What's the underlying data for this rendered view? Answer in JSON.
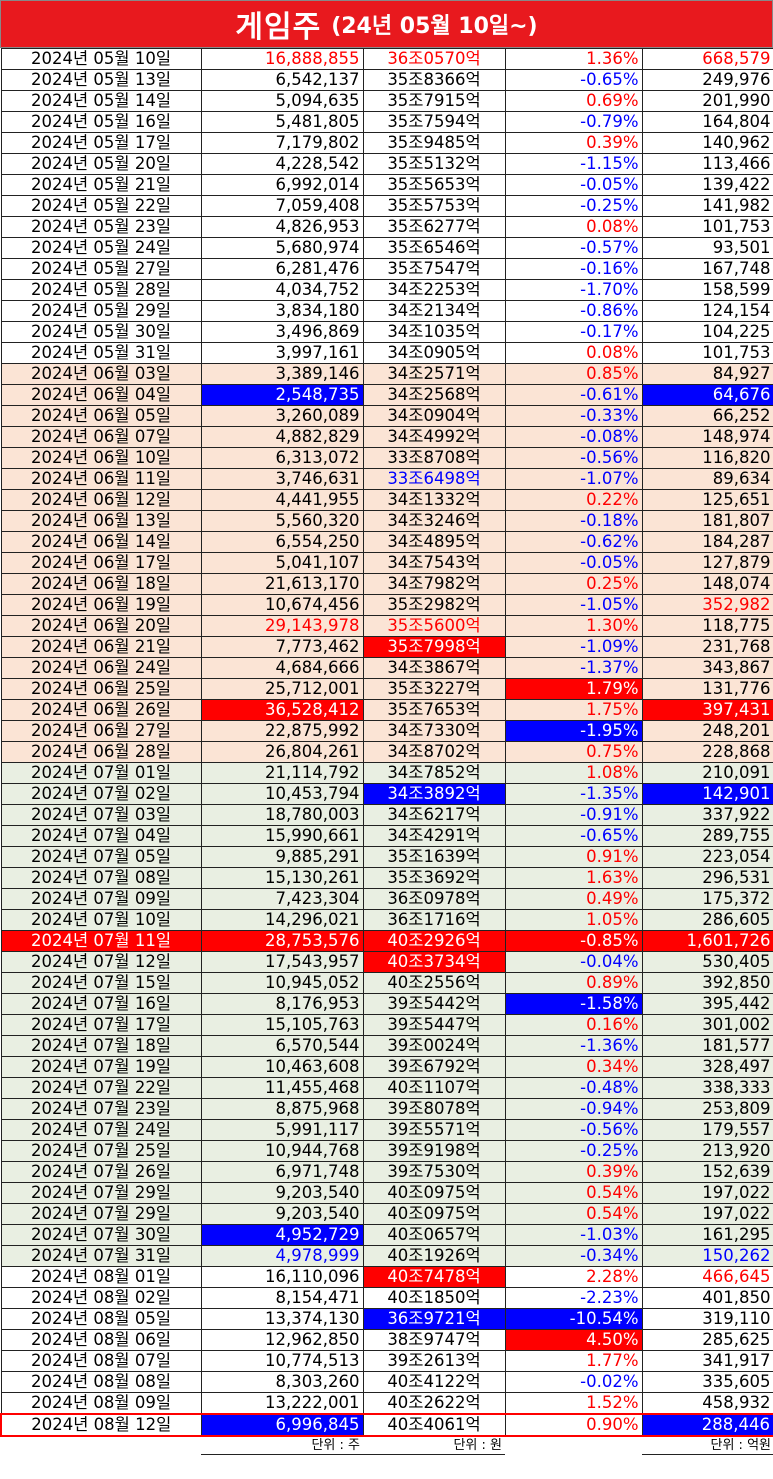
{
  "title": {
    "main": "게임주",
    "sub": "(24년 05월 10일~)"
  },
  "units": {
    "volume": "단위 : 주",
    "cap": "단위 : 원",
    "amount": "단위 : 억원"
  },
  "colors": {
    "title_bg": "#e8191e",
    "highlight_red": "#ff0000",
    "highlight_blue": "#0000ff",
    "may_bg": "#ffffff",
    "june_bg": "#fbe4d5",
    "july_bg": "#e9efe2",
    "aug_bg": "#ffffff"
  },
  "rows": [
    {
      "g": "may",
      "date": "2024년 05월 10일",
      "vol": "16,888,855",
      "cap": "36조0570억",
      "chg": "1.36%",
      "amt": "668,579",
      "vs": "r",
      "cs": "r",
      "gs": "r",
      "as": "r"
    },
    {
      "g": "may",
      "date": "2024년 05월 13일",
      "vol": "6,542,137",
      "cap": "35조8366억",
      "chg": "-0.65%",
      "amt": "249,976",
      "gs": "b"
    },
    {
      "g": "may",
      "date": "2024년 05월 14일",
      "vol": "5,094,635",
      "cap": "35조7915억",
      "chg": "0.69%",
      "amt": "201,990",
      "gs": "r"
    },
    {
      "g": "may",
      "date": "2024년 05월 16일",
      "vol": "5,481,805",
      "cap": "35조7594억",
      "chg": "-0.79%",
      "amt": "164,804",
      "gs": "b"
    },
    {
      "g": "may",
      "date": "2024년 05월 17일",
      "vol": "7,179,802",
      "cap": "35조9485억",
      "chg": "0.39%",
      "amt": "140,962",
      "gs": "r"
    },
    {
      "g": "may",
      "date": "2024년 05월 20일",
      "vol": "4,228,542",
      "cap": "35조5132억",
      "chg": "-1.15%",
      "amt": "113,466",
      "gs": "b"
    },
    {
      "g": "may",
      "date": "2024년 05월 21일",
      "vol": "6,992,014",
      "cap": "35조5653억",
      "chg": "-0.05%",
      "amt": "139,422",
      "gs": "b"
    },
    {
      "g": "may",
      "date": "2024년 05월 22일",
      "vol": "7,059,408",
      "cap": "35조5753억",
      "chg": "-0.25%",
      "amt": "141,982",
      "gs": "b"
    },
    {
      "g": "may",
      "date": "2024년 05월 23일",
      "vol": "4,826,953",
      "cap": "35조6277억",
      "chg": "0.08%",
      "amt": "101,753",
      "gs": "r"
    },
    {
      "g": "may",
      "date": "2024년 05월 24일",
      "vol": "5,680,974",
      "cap": "35조6546억",
      "chg": "-0.57%",
      "amt": "93,501",
      "gs": "b"
    },
    {
      "g": "may",
      "date": "2024년 05월 27일",
      "vol": "6,281,476",
      "cap": "35조7547억",
      "chg": "-0.16%",
      "amt": "167,748",
      "gs": "b"
    },
    {
      "g": "may",
      "date": "2024년 05월 28일",
      "vol": "4,034,752",
      "cap": "34조2253억",
      "chg": "-1.70%",
      "amt": "158,599",
      "gs": "b"
    },
    {
      "g": "may",
      "date": "2024년 05월 29일",
      "vol": "3,834,180",
      "cap": "34조2134억",
      "chg": "-0.86%",
      "amt": "124,154",
      "gs": "b"
    },
    {
      "g": "may",
      "date": "2024년 05월 30일",
      "vol": "3,496,869",
      "cap": "34조1035억",
      "chg": "-0.17%",
      "amt": "104,225",
      "gs": "b"
    },
    {
      "g": "may",
      "date": "2024년 05월 31일",
      "vol": "3,997,161",
      "cap": "34조0905억",
      "chg": "0.08%",
      "amt": "101,753",
      "gs": "r"
    },
    {
      "g": "jun",
      "date": "2024년 06월 03일",
      "vol": "3,389,146",
      "cap": "34조2571억",
      "chg": "0.85%",
      "amt": "84,927",
      "gs": "r"
    },
    {
      "g": "jun",
      "date": "2024년 06월 04일",
      "vol": "2,548,735",
      "cap": "34조2568억",
      "chg": "-0.61%",
      "amt": "64,676",
      "vs": "B",
      "gs": "b",
      "as": "B"
    },
    {
      "g": "jun",
      "date": "2024년 06월 05일",
      "vol": "3,260,089",
      "cap": "34조0904억",
      "chg": "-0.33%",
      "amt": "66,252",
      "gs": "b"
    },
    {
      "g": "jun",
      "date": "2024년 06월 07일",
      "vol": "4,882,829",
      "cap": "34조4992억",
      "chg": "-0.08%",
      "amt": "148,974",
      "gs": "b"
    },
    {
      "g": "jun",
      "date": "2024년 06월 10일",
      "vol": "6,313,072",
      "cap": "33조8708억",
      "chg": "-0.56%",
      "amt": "116,820",
      "gs": "b"
    },
    {
      "g": "jun",
      "date": "2024년 06월 11일",
      "vol": "3,746,631",
      "cap": "33조6498억",
      "chg": "-1.07%",
      "amt": "89,634",
      "cs": "b",
      "gs": "b"
    },
    {
      "g": "jun",
      "date": "2024년 06월 12일",
      "vol": "4,441,955",
      "cap": "34조1332억",
      "chg": "0.22%",
      "amt": "125,651",
      "gs": "r"
    },
    {
      "g": "jun",
      "date": "2024년 06월 13일",
      "vol": "5,560,320",
      "cap": "34조3246억",
      "chg": "-0.18%",
      "amt": "181,807",
      "gs": "b"
    },
    {
      "g": "jun",
      "date": "2024년 06월 14일",
      "vol": "6,554,250",
      "cap": "34조4895억",
      "chg": "-0.62%",
      "amt": "184,287",
      "gs": "b"
    },
    {
      "g": "jun",
      "date": "2024년 06월 17일",
      "vol": "5,041,107",
      "cap": "34조7543억",
      "chg": "-0.05%",
      "amt": "127,879",
      "gs": "b"
    },
    {
      "g": "jun",
      "date": "2024년 06월 18일",
      "vol": "21,613,170",
      "cap": "34조7982억",
      "chg": "0.25%",
      "amt": "148,074",
      "gs": "r"
    },
    {
      "g": "jun",
      "date": "2024년 06월 19일",
      "vol": "10,674,456",
      "cap": "35조2982억",
      "chg": "-1.05%",
      "amt": "352,982",
      "gs": "b",
      "as": "r"
    },
    {
      "g": "jun",
      "date": "2024년 06월 20일",
      "vol": "29,143,978",
      "cap": "35조5600억",
      "chg": "1.30%",
      "amt": "118,775",
      "vs": "r",
      "cs": "r",
      "gs": "r"
    },
    {
      "g": "jun",
      "date": "2024년 06월 21일",
      "vol": "7,773,462",
      "cap": "35조7998억",
      "chg": "-1.09%",
      "amt": "231,768",
      "cs": "R",
      "gs": "b"
    },
    {
      "g": "jun",
      "date": "2024년 06월 24일",
      "vol": "4,684,666",
      "cap": "34조3867억",
      "chg": "-1.37%",
      "amt": "343,867",
      "gs": "b"
    },
    {
      "g": "jun",
      "date": "2024년 06월 25일",
      "vol": "25,712,001",
      "cap": "35조3227억",
      "chg": "1.79%",
      "amt": "131,776",
      "gs": "R"
    },
    {
      "g": "jun",
      "date": "2024년 06월 26일",
      "vol": "36,528,412",
      "cap": "35조7653억",
      "chg": "1.75%",
      "amt": "397,431",
      "vs": "R",
      "gs": "r",
      "as": "R"
    },
    {
      "g": "jun",
      "date": "2024년 06월 27일",
      "vol": "22,875,992",
      "cap": "34조7330억",
      "chg": "-1.95%",
      "amt": "248,201",
      "gs": "B"
    },
    {
      "g": "jun",
      "date": "2024년 06월 28일",
      "vol": "26,804,261",
      "cap": "34조8702억",
      "chg": "0.75%",
      "amt": "228,868",
      "gs": "r"
    },
    {
      "g": "jul",
      "date": "2024년 07월 01일",
      "vol": "21,114,792",
      "cap": "34조7852억",
      "chg": "1.08%",
      "amt": "210,091",
      "gs": "r"
    },
    {
      "g": "jul",
      "date": "2024년 07월 02일",
      "vol": "10,453,794",
      "cap": "34조3892억",
      "chg": "-1.35%",
      "amt": "142,901",
      "cs": "B",
      "gs": "b",
      "as": "B"
    },
    {
      "g": "jul",
      "date": "2024년 07월 03일",
      "vol": "18,780,003",
      "cap": "34조6217억",
      "chg": "-0.91%",
      "amt": "337,922",
      "gs": "b"
    },
    {
      "g": "jul",
      "date": "2024년 07월 04일",
      "vol": "15,990,661",
      "cap": "34조4291억",
      "chg": "-0.65%",
      "amt": "289,755",
      "gs": "b"
    },
    {
      "g": "jul",
      "date": "2024년 07월 05일",
      "vol": "9,885,291",
      "cap": "35조1639억",
      "chg": "0.91%",
      "amt": "223,054",
      "gs": "r"
    },
    {
      "g": "jul",
      "date": "2024년 07월 08일",
      "vol": "15,130,261",
      "cap": "35조3692억",
      "chg": "1.63%",
      "amt": "296,531",
      "gs": "r"
    },
    {
      "g": "jul",
      "date": "2024년 07월 09일",
      "vol": "7,423,304",
      "cap": "36조0978억",
      "chg": "0.49%",
      "amt": "175,372",
      "gs": "r"
    },
    {
      "g": "jul",
      "date": "2024년 07월 10일",
      "vol": "14,296,021",
      "cap": "36조1716억",
      "chg": "1.05%",
      "amt": "286,605",
      "gs": "r"
    },
    {
      "g": "jul",
      "date": "2024년 07월 11일",
      "vol": "28,753,576",
      "cap": "40조2926억",
      "chg": "-0.85%",
      "amt": "1,601,726",
      "ds": "R",
      "vs": "R",
      "cs": "R",
      "gs": "R",
      "as": "R"
    },
    {
      "g": "jul",
      "date": "2024년 07월 12일",
      "vol": "17,543,957",
      "cap": "40조3734억",
      "chg": "-0.04%",
      "amt": "530,405",
      "cs": "R",
      "gs": "b"
    },
    {
      "g": "jul",
      "date": "2024년 07월 15일",
      "vol": "10,945,052",
      "cap": "40조2556억",
      "chg": "0.89%",
      "amt": "392,850",
      "gs": "r"
    },
    {
      "g": "jul",
      "date": "2024년 07월 16일",
      "vol": "8,176,953",
      "cap": "39조5442억",
      "chg": "-1.58%",
      "amt": "395,442",
      "gs": "B"
    },
    {
      "g": "jul",
      "date": "2024년 07월 17일",
      "vol": "15,105,763",
      "cap": "39조5447억",
      "chg": "0.16%",
      "amt": "301,002",
      "gs": "r"
    },
    {
      "g": "jul",
      "date": "2024년 07월 18일",
      "vol": "6,570,544",
      "cap": "39조0024억",
      "chg": "-1.36%",
      "amt": "181,577",
      "gs": "b"
    },
    {
      "g": "jul",
      "date": "2024년 07월 19일",
      "vol": "10,463,608",
      "cap": "39조6792억",
      "chg": "0.34%",
      "amt": "328,497",
      "gs": "r"
    },
    {
      "g": "jul",
      "date": "2024년 07월 22일",
      "vol": "11,455,468",
      "cap": "40조1107억",
      "chg": "-0.48%",
      "amt": "338,333",
      "gs": "b"
    },
    {
      "g": "jul",
      "date": "2024년 07월 23일",
      "vol": "8,875,968",
      "cap": "39조8078억",
      "chg": "-0.94%",
      "amt": "253,809",
      "gs": "b"
    },
    {
      "g": "jul",
      "date": "2024년 07월 24일",
      "vol": "5,991,117",
      "cap": "39조5571억",
      "chg": "-0.56%",
      "amt": "179,557",
      "gs": "b"
    },
    {
      "g": "jul",
      "date": "2024년 07월 25일",
      "vol": "10,944,768",
      "cap": "39조9198억",
      "chg": "-0.25%",
      "amt": "213,920",
      "gs": "b"
    },
    {
      "g": "jul",
      "date": "2024년 07월 26일",
      "vol": "6,971,748",
      "cap": "39조7530억",
      "chg": "0.39%",
      "amt": "152,639",
      "gs": "r"
    },
    {
      "g": "jul",
      "date": "2024년 07월 29일",
      "vol": "9,203,540",
      "cap": "40조0975억",
      "chg": "0.54%",
      "amt": "197,022",
      "gs": "r"
    },
    {
      "g": "jul",
      "date": "2024년 07월 29일",
      "vol": "9,203,540",
      "cap": "40조0975억",
      "chg": "0.54%",
      "amt": "197,022",
      "gs": "r"
    },
    {
      "g": "jul",
      "date": "2024년 07월 30일",
      "vol": "4,952,729",
      "cap": "40조0657억",
      "chg": "-1.03%",
      "amt": "161,295",
      "vs": "B",
      "gs": "b"
    },
    {
      "g": "jul",
      "date": "2024년 07월 31일",
      "vol": "4,978,999",
      "cap": "40조1926억",
      "chg": "-0.34%",
      "amt": "150,262",
      "vs": "b",
      "gs": "b",
      "as": "b"
    },
    {
      "g": "aug",
      "date": "2024년 08월 01일",
      "vol": "16,110,096",
      "cap": "40조7478억",
      "chg": "2.28%",
      "amt": "466,645",
      "cs": "R",
      "gs": "r",
      "as": "r"
    },
    {
      "g": "aug",
      "date": "2024년 08월 02일",
      "vol": "8,154,471",
      "cap": "40조1850억",
      "chg": "-2.23%",
      "amt": "401,850",
      "gs": "b"
    },
    {
      "g": "aug",
      "date": "2024년 08월 05일",
      "vol": "13,374,130",
      "cap": "36조9721억",
      "chg": "-10.54%",
      "amt": "319,110",
      "cs": "B",
      "gs": "B"
    },
    {
      "g": "aug",
      "date": "2024년 08월 06일",
      "vol": "12,962,850",
      "cap": "38조9747억",
      "chg": "4.50%",
      "amt": "285,625",
      "gs": "R"
    },
    {
      "g": "aug",
      "date": "2024년 08월 07일",
      "vol": "10,774,513",
      "cap": "39조2613억",
      "chg": "1.77%",
      "amt": "341,917",
      "gs": "r"
    },
    {
      "g": "aug",
      "date": "2024년 08월 08일",
      "vol": "8,303,260",
      "cap": "40조4122억",
      "chg": "-0.02%",
      "amt": "335,605",
      "gs": "b"
    },
    {
      "g": "aug",
      "date": "2024년 08월 09일",
      "vol": "13,222,001",
      "cap": "40조2622억",
      "chg": "1.52%",
      "amt": "458,932",
      "gs": "r"
    },
    {
      "g": "aug",
      "date": "2024년 08월 12일",
      "vol": "6,996,845",
      "cap": "40조4061억",
      "chg": "0.90%",
      "amt": "288,446",
      "vs": "B",
      "gs": "r",
      "as": "B",
      "last": true
    }
  ]
}
